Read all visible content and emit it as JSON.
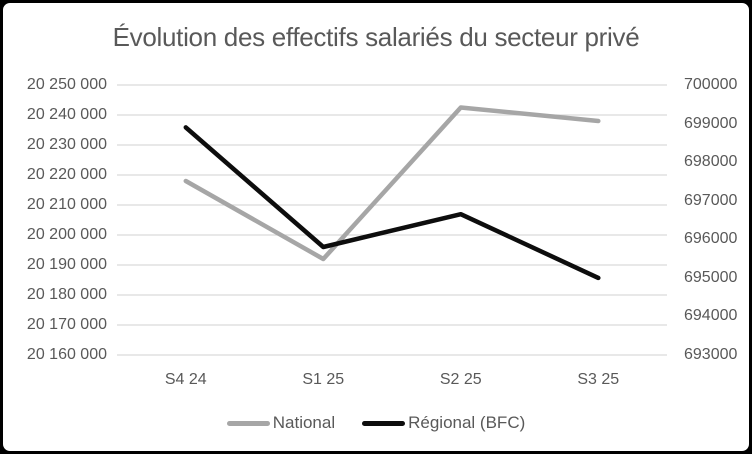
{
  "chart_data": {
    "type": "line",
    "title": "Évolution des effectifs salariés du secteur privé",
    "categories": [
      "S4 24",
      "S1 25",
      "S2 25",
      "S3 25"
    ],
    "series": [
      {
        "name": "National",
        "axis": "left",
        "color": "#a6a6a6",
        "values": [
          20218000,
          20192000,
          20242500,
          20238000
        ]
      },
      {
        "name": "Régional (BFC)",
        "axis": "right",
        "color": "#0d0d0d",
        "values": [
          698900,
          695800,
          696650,
          695000
        ]
      }
    ],
    "left_axis": {
      "min": 20160000,
      "max": 20250000,
      "step": 10000,
      "tick_labels": [
        "20 250 000",
        "20 240 000",
        "20 230 000",
        "20 220 000",
        "20 210 000",
        "20 200 000",
        "20 190 000",
        "20 180 000",
        "20 170 000",
        "20 160 000"
      ]
    },
    "right_axis": {
      "min": 693000,
      "max": 700000,
      "step": 1000,
      "tick_labels": [
        "700000",
        "699000",
        "698000",
        "697000",
        "696000",
        "695000",
        "694000",
        "693000"
      ]
    },
    "grid": true,
    "legend_position": "bottom",
    "colors": {
      "text": "#595959",
      "gridline": "#d9d9d9",
      "background": "#ffffff",
      "border": "#000000"
    }
  }
}
